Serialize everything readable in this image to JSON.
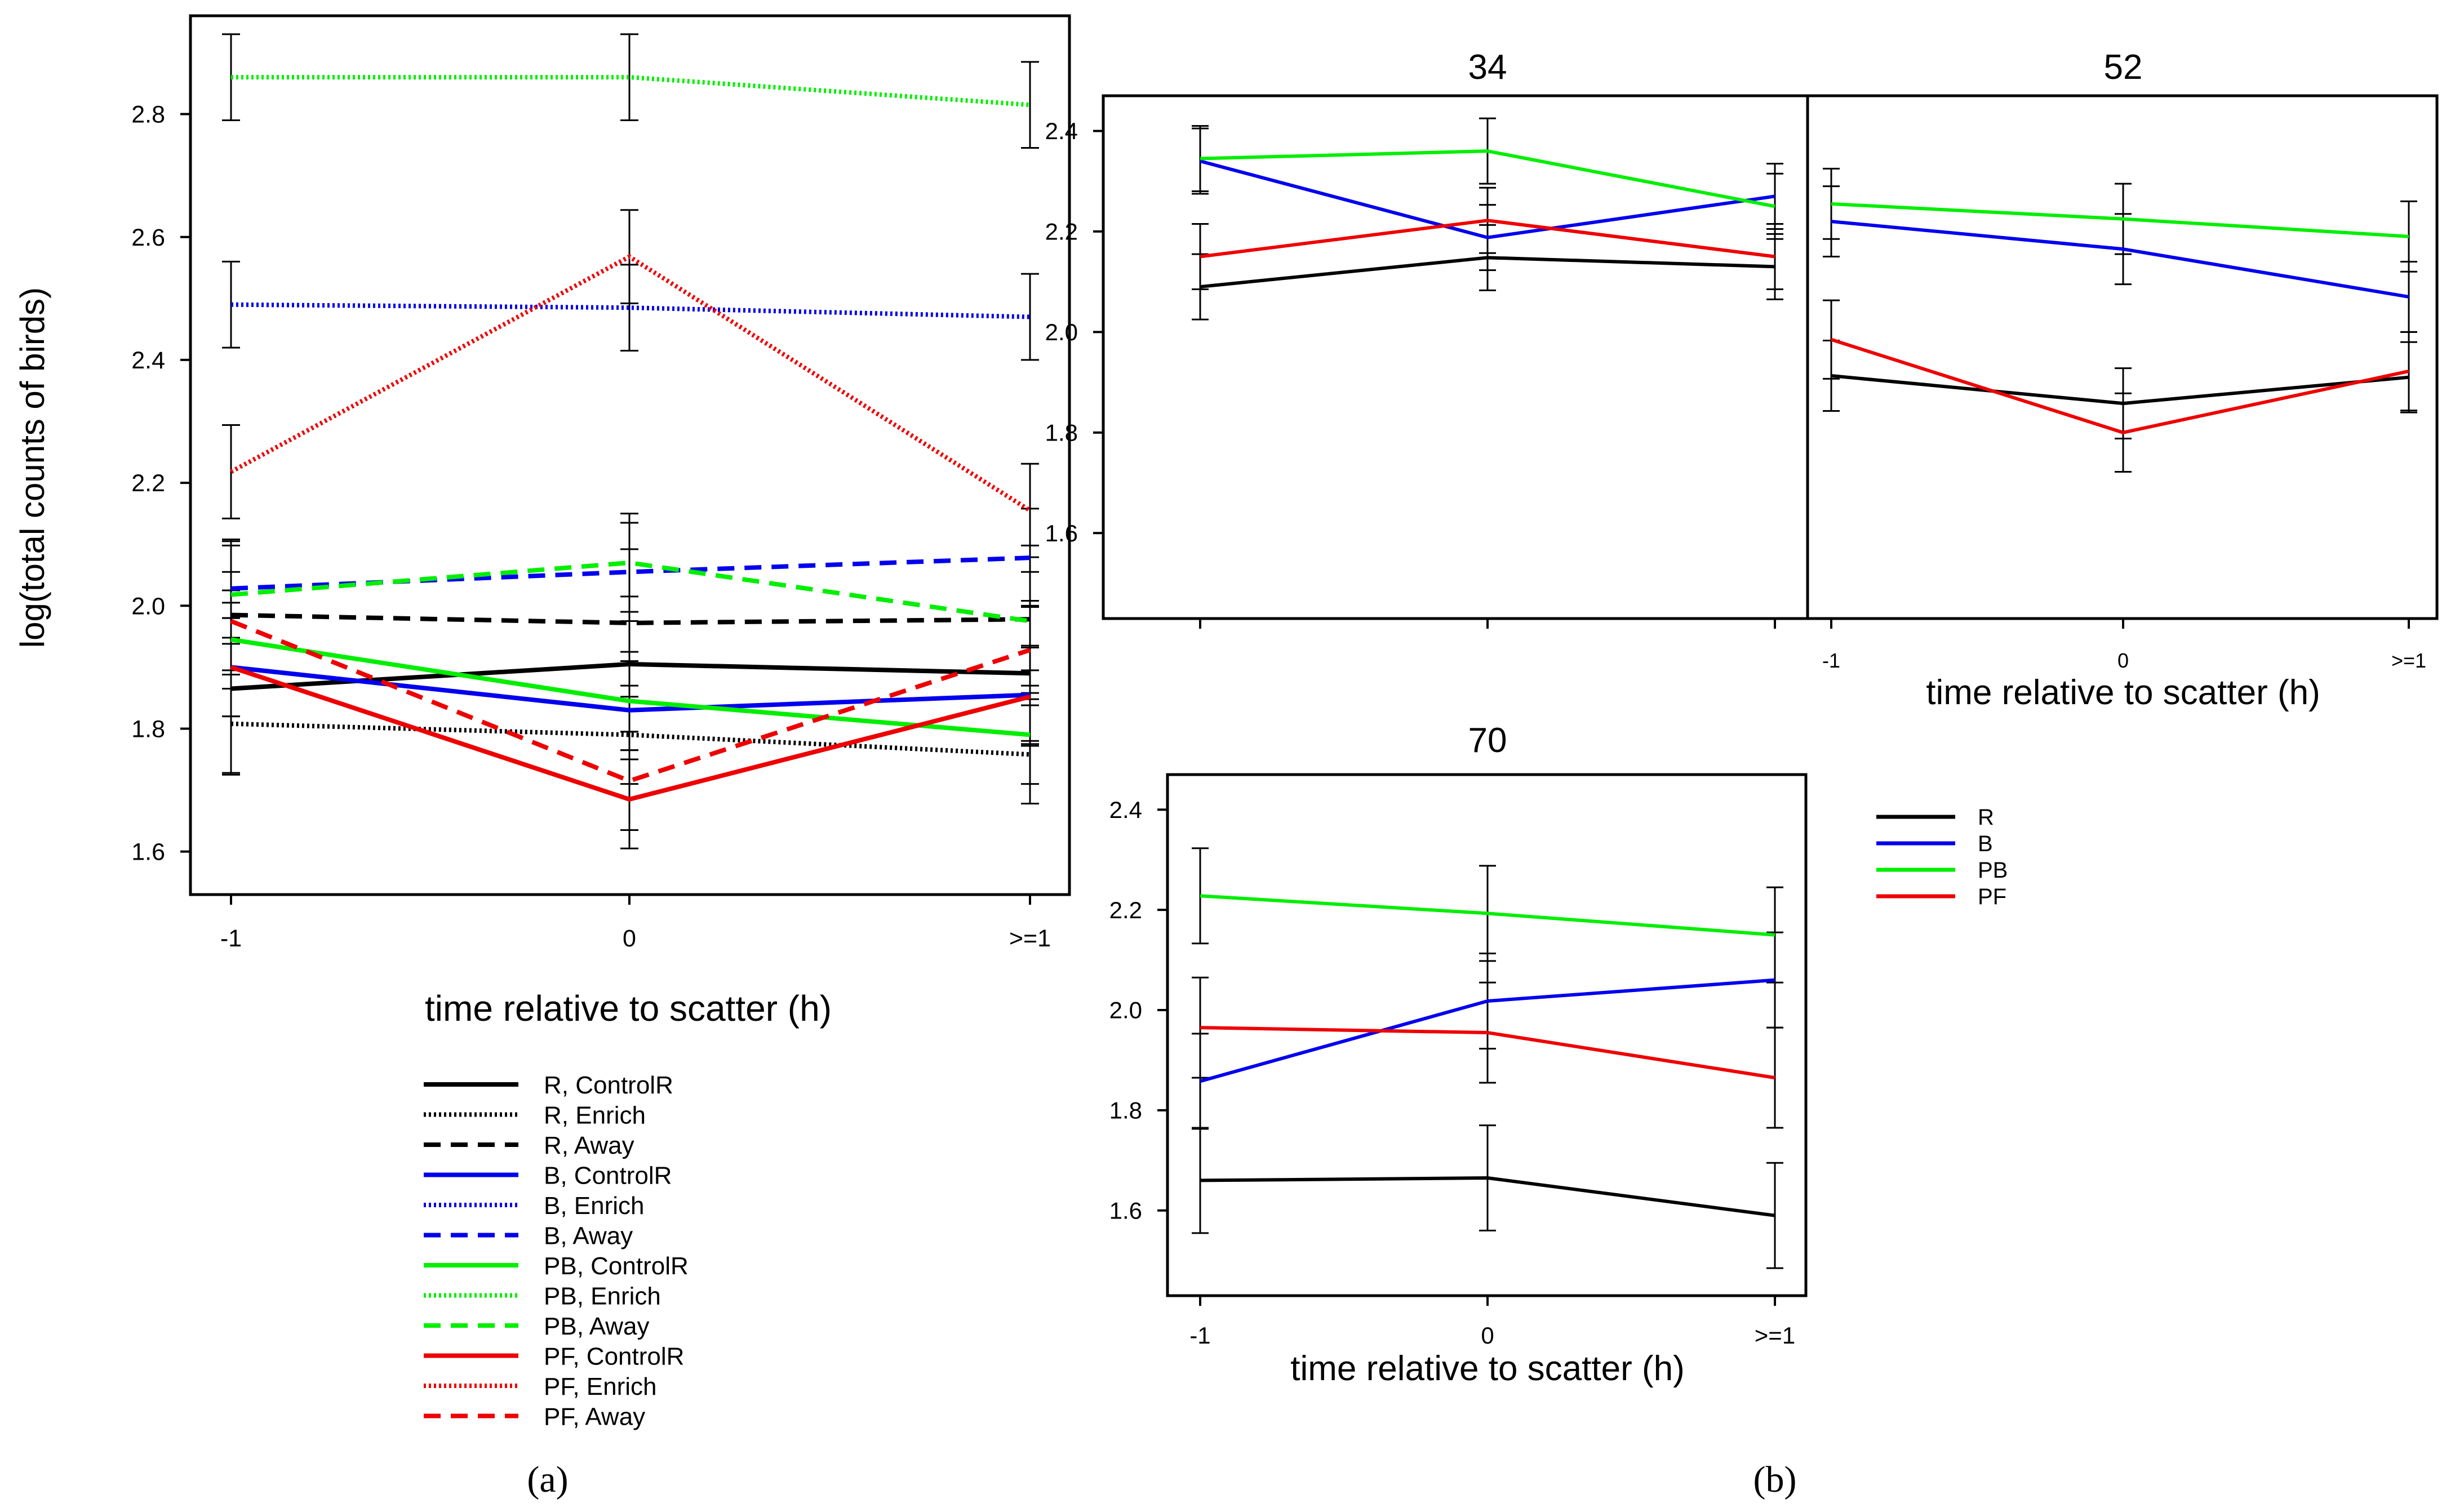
{
  "chart_data": [
    {
      "id": "a",
      "type": "line",
      "panel_label": "(a)",
      "title": "",
      "xlabel": "time relative to scatter (h)",
      "ylabel": "log(total counts of birds)",
      "categories": [
        "-1",
        "0",
        ">=1"
      ],
      "yticks": [
        "1.6",
        "1.8",
        "2.0",
        "2.2",
        "2.4",
        "2.6",
        "2.8"
      ],
      "ylim": [
        1.53,
        2.96
      ],
      "grid": false,
      "legend_position": "below",
      "series": [
        {
          "name": "R, ControlR",
          "color": "#000000",
          "style": "solid",
          "values": [
            1.865,
            1.905,
            1.89
          ],
          "err": [
            0.14,
            0.11,
            0.11
          ]
        },
        {
          "name": "R, Enrich",
          "color": "#000000",
          "style": "dotted",
          "values": [
            1.808,
            1.79,
            1.758
          ],
          "err": [
            0.08,
            0.08,
            0.08
          ]
        },
        {
          "name": "R, Away",
          "color": "#000000",
          "style": "dashed",
          "values": [
            1.985,
            1.972,
            1.978
          ],
          "err": [
            0.12,
            0.12,
            0.12
          ]
        },
        {
          "name": "B, ControlR",
          "color": "#0000ee",
          "style": "solid",
          "values": [
            1.9,
            1.83,
            1.855
          ],
          "err": [
            0.08,
            0.08,
            0.08
          ]
        },
        {
          "name": "B, Enrich",
          "color": "#0000ee",
          "style": "dotted",
          "values": [
            2.49,
            2.485,
            2.47
          ],
          "err": [
            0.07,
            0.07,
            0.07
          ]
        },
        {
          "name": "B, Away",
          "color": "#0000ee",
          "style": "dashed",
          "values": [
            2.028,
            2.055,
            2.078
          ],
          "err": [
            0.08,
            0.08,
            0.08
          ]
        },
        {
          "name": "PB, ControlR",
          "color": "#00ee00",
          "style": "solid",
          "values": [
            1.945,
            1.845,
            1.79
          ],
          "err": [
            0.08,
            0.08,
            0.08
          ]
        },
        {
          "name": "PB, Enrich",
          "color": "#00ee00",
          "style": "dotted",
          "values": [
            2.86,
            2.86,
            2.815
          ],
          "err": [
            0.07,
            0.07,
            0.07
          ]
        },
        {
          "name": "PB, Away",
          "color": "#00ee00",
          "style": "dashed",
          "values": [
            2.018,
            2.07,
            1.975
          ],
          "err": [
            0.08,
            0.08,
            0.08
          ]
        },
        {
          "name": "PF, ControlR",
          "color": "#ee0000",
          "style": "solid",
          "values": [
            1.9,
            1.685,
            1.852
          ],
          "err": [
            0.08,
            0.08,
            0.08
          ]
        },
        {
          "name": "PF, Enrich",
          "color": "#ee0000",
          "style": "dotted",
          "values": [
            2.218,
            2.568,
            2.155
          ],
          "err": [
            0.076,
            0.076,
            0.076
          ]
        },
        {
          "name": "PF, Away",
          "color": "#ee0000",
          "style": "dashed",
          "values": [
            1.975,
            1.715,
            1.928
          ],
          "err": [
            0.08,
            0.08,
            0.08
          ]
        }
      ]
    },
    {
      "id": "b-34",
      "type": "line",
      "title": "34",
      "xlabel": "",
      "categories": [
        "-1",
        "0",
        ">=1"
      ],
      "show_tick_labels": false,
      "yticks": [
        "1.6",
        "1.8",
        "2.0",
        "2.2",
        "2.4"
      ],
      "ylim": [
        1.43,
        2.47
      ],
      "series": [
        {
          "name": "R",
          "color": "#000000",
          "values": [
            2.09,
            2.148,
            2.13
          ],
          "err": [
            0.065,
            0.065,
            0.065
          ]
        },
        {
          "name": "B",
          "color": "#0000ee",
          "values": [
            2.34,
            2.188,
            2.27
          ],
          "err": [
            0.065,
            0.065,
            0.065
          ]
        },
        {
          "name": "PB",
          "color": "#00ee00",
          "values": [
            2.345,
            2.36,
            2.25
          ],
          "err": [
            0.065,
            0.065,
            0.065
          ]
        },
        {
          "name": "PF",
          "color": "#ee0000",
          "values": [
            2.15,
            2.222,
            2.15
          ],
          "err": [
            0.065,
            0.065,
            0.065
          ]
        }
      ]
    },
    {
      "id": "b-52",
      "type": "line",
      "title": "52",
      "xlabel": "time relative to scatter (h)",
      "categories": [
        "-1",
        "0",
        ">=1"
      ],
      "show_tick_labels": true,
      "yticks": [],
      "ylim": [
        1.43,
        2.47
      ],
      "series": [
        {
          "name": "R",
          "color": "#000000",
          "values": [
            1.913,
            1.858,
            1.91
          ],
          "err": [
            0.07,
            0.07,
            0.07
          ]
        },
        {
          "name": "B",
          "color": "#0000ee",
          "values": [
            2.22,
            2.165,
            2.07
          ],
          "err": [
            0.07,
            0.07,
            0.07
          ]
        },
        {
          "name": "PB",
          "color": "#00ee00",
          "values": [
            2.255,
            2.225,
            2.19
          ],
          "err": [
            0.07,
            0.07,
            0.07
          ]
        },
        {
          "name": "PF",
          "color": "#ee0000",
          "values": [
            1.985,
            1.8,
            1.922
          ],
          "err": [
            0.078,
            0.078,
            0.078
          ]
        }
      ]
    },
    {
      "id": "b-70",
      "type": "line",
      "title": "70",
      "panel_label": "(b)",
      "xlabel": "time relative to scatter (h)",
      "categories": [
        "-1",
        "0",
        ">=1"
      ],
      "show_tick_labels": true,
      "yticks": [
        "1.6",
        "1.8",
        "2.0",
        "2.2",
        "2.4"
      ],
      "ylim": [
        1.43,
        2.47
      ],
      "legend_position": "right",
      "legend": [
        "R",
        "B",
        "PB",
        "PF"
      ],
      "legend_colors": [
        "#000000",
        "#0000ee",
        "#00ee00",
        "#ee0000"
      ],
      "series": [
        {
          "name": "R",
          "color": "#000000",
          "values": [
            1.66,
            1.665,
            1.59
          ],
          "err": [
            0.105,
            0.105,
            0.105
          ]
        },
        {
          "name": "B",
          "color": "#0000ee",
          "values": [
            1.858,
            2.018,
            2.06
          ],
          "err": [
            0.095,
            0.095,
            0.095
          ]
        },
        {
          "name": "PB",
          "color": "#00ee00",
          "values": [
            2.228,
            2.193,
            2.15
          ],
          "err": [
            0.095,
            0.095,
            0.095
          ]
        },
        {
          "name": "PF",
          "color": "#ee0000",
          "values": [
            1.965,
            1.955,
            1.865
          ],
          "err": [
            0.1,
            0.1,
            0.1
          ]
        }
      ]
    }
  ]
}
